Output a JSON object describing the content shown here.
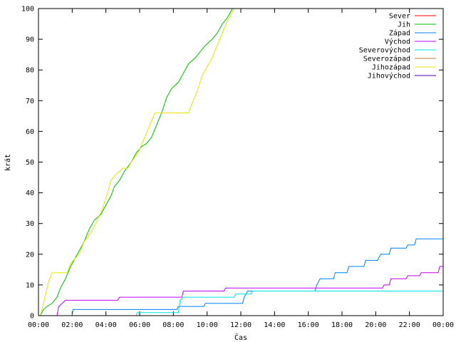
{
  "chart_data": {
    "type": "line",
    "xlabel": "Čas",
    "ylabel": "krát",
    "xlim": [
      0,
      24
    ],
    "ylim": [
      0,
      100
    ],
    "x_ticks": [
      {
        "v": 0,
        "label": "00:00"
      },
      {
        "v": 2,
        "label": "02:00"
      },
      {
        "v": 4,
        "label": "04:00"
      },
      {
        "v": 6,
        "label": "06:00"
      },
      {
        "v": 8,
        "label": "08:00"
      },
      {
        "v": 10,
        "label": "10:00"
      },
      {
        "v": 12,
        "label": "12:00"
      },
      {
        "v": 14,
        "label": "14:00"
      },
      {
        "v": 16,
        "label": "16:00"
      },
      {
        "v": 18,
        "label": "18:00"
      },
      {
        "v": 20,
        "label": "20:00"
      },
      {
        "v": 22,
        "label": "22:00"
      },
      {
        "v": 24,
        "label": "00:00"
      }
    ],
    "y_ticks": [
      {
        "v": 0,
        "label": "0"
      },
      {
        "v": 10,
        "label": "10"
      },
      {
        "v": 20,
        "label": "20"
      },
      {
        "v": 30,
        "label": "30"
      },
      {
        "v": 40,
        "label": "40"
      },
      {
        "v": 50,
        "label": "50"
      },
      {
        "v": 60,
        "label": "60"
      },
      {
        "v": 70,
        "label": "70"
      },
      {
        "v": 80,
        "label": "80"
      },
      {
        "v": 90,
        "label": "90"
      },
      {
        "v": 100,
        "label": "100"
      }
    ],
    "legend_position": "top-right",
    "series": [
      {
        "name": "Sever",
        "color": "#ff0000",
        "points": []
      },
      {
        "name": "Jih",
        "color": "#00c000",
        "points": [
          [
            0.1,
            0
          ],
          [
            0.3,
            2
          ],
          [
            0.5,
            3
          ],
          [
            0.8,
            4
          ],
          [
            1.1,
            6
          ],
          [
            1.3,
            9
          ],
          [
            1.6,
            12
          ],
          [
            1.9,
            16
          ],
          [
            2.2,
            19
          ],
          [
            2.7,
            24
          ],
          [
            3.0,
            28
          ],
          [
            3.3,
            31
          ],
          [
            3.7,
            33
          ],
          [
            4.0,
            36
          ],
          [
            4.3,
            39
          ],
          [
            4.5,
            42
          ],
          [
            4.8,
            44
          ],
          [
            5.1,
            47
          ],
          [
            5.5,
            50
          ],
          [
            5.8,
            53
          ],
          [
            6.1,
            55
          ],
          [
            6.4,
            56
          ],
          [
            6.7,
            58
          ],
          [
            7.0,
            62
          ],
          [
            7.3,
            66
          ],
          [
            7.6,
            71
          ],
          [
            7.9,
            74
          ],
          [
            8.3,
            76
          ],
          [
            8.6,
            79
          ],
          [
            8.9,
            82
          ],
          [
            9.3,
            84
          ],
          [
            9.6,
            86
          ],
          [
            9.9,
            88
          ],
          [
            10.3,
            90
          ],
          [
            10.6,
            92
          ],
          [
            10.9,
            95
          ],
          [
            11.2,
            97
          ],
          [
            11.5,
            100
          ]
        ]
      },
      {
        "name": "Západ",
        "color": "#0080ff",
        "points": [
          [
            2.0,
            0
          ],
          [
            2.05,
            2
          ],
          [
            8.2,
            2
          ],
          [
            8.3,
            3
          ],
          [
            9.8,
            3
          ],
          [
            9.9,
            4
          ],
          [
            12.1,
            4
          ],
          [
            12.2,
            6
          ],
          [
            12.3,
            7
          ],
          [
            12.4,
            8
          ],
          [
            16.4,
            8
          ],
          [
            16.5,
            10
          ],
          [
            16.7,
            12
          ],
          [
            17.5,
            12
          ],
          [
            17.6,
            14
          ],
          [
            18.3,
            14
          ],
          [
            18.4,
            16
          ],
          [
            19.3,
            16
          ],
          [
            19.4,
            18
          ],
          [
            20.1,
            18
          ],
          [
            20.3,
            20
          ],
          [
            20.8,
            20
          ],
          [
            20.9,
            22
          ],
          [
            21.8,
            22
          ],
          [
            21.9,
            23
          ],
          [
            22.3,
            23
          ],
          [
            22.4,
            25
          ],
          [
            24.0,
            25
          ]
        ]
      },
      {
        "name": "Východ",
        "color": "#c000ff",
        "points": [
          [
            1.1,
            0
          ],
          [
            1.2,
            3
          ],
          [
            1.6,
            5
          ],
          [
            4.7,
            5
          ],
          [
            4.8,
            6
          ],
          [
            8.5,
            6
          ],
          [
            8.6,
            8
          ],
          [
            11.0,
            8
          ],
          [
            11.1,
            9
          ],
          [
            20.4,
            9
          ],
          [
            20.5,
            10
          ],
          [
            20.8,
            10
          ],
          [
            20.9,
            12
          ],
          [
            21.8,
            12
          ],
          [
            21.9,
            13
          ],
          [
            22.6,
            13
          ],
          [
            22.7,
            14
          ],
          [
            23.7,
            14
          ],
          [
            23.8,
            16
          ],
          [
            24.0,
            16
          ]
        ]
      },
      {
        "name": "Severovýchod",
        "color": "#00e0e0",
        "points": [
          [
            5.8,
            0
          ],
          [
            5.85,
            1
          ],
          [
            8.3,
            1
          ],
          [
            8.4,
            5
          ],
          [
            8.6,
            6
          ],
          [
            11.6,
            6
          ],
          [
            11.7,
            7
          ],
          [
            12.6,
            7
          ],
          [
            12.7,
            8
          ],
          [
            24.0,
            8
          ]
        ]
      },
      {
        "name": "Severozápad",
        "color": "#c08040",
        "points": []
      },
      {
        "name": "Jihozápad",
        "color": "#e8e800",
        "points": [
          [
            0.1,
            0
          ],
          [
            0.3,
            4
          ],
          [
            0.6,
            11
          ],
          [
            0.8,
            14
          ],
          [
            1.7,
            14
          ],
          [
            1.9,
            17
          ],
          [
            2.4,
            20
          ],
          [
            2.7,
            24
          ],
          [
            3.1,
            27
          ],
          [
            3.4,
            30
          ],
          [
            3.8,
            35
          ],
          [
            4.1,
            40
          ],
          [
            4.3,
            44
          ],
          [
            4.6,
            46
          ],
          [
            5.0,
            48
          ],
          [
            5.3,
            48
          ],
          [
            5.5,
            50
          ],
          [
            5.9,
            53
          ],
          [
            6.3,
            58
          ],
          [
            6.6,
            62
          ],
          [
            6.9,
            66
          ],
          [
            7.3,
            66
          ],
          [
            8.9,
            66
          ],
          [
            9.1,
            69
          ],
          [
            9.4,
            73
          ],
          [
            9.7,
            78
          ],
          [
            10.0,
            81
          ],
          [
            10.3,
            84
          ],
          [
            10.6,
            88
          ],
          [
            10.9,
            92
          ],
          [
            11.2,
            96
          ],
          [
            11.4,
            98
          ],
          [
            11.6,
            100
          ]
        ]
      },
      {
        "name": "Jihovýchod",
        "color": "#4000a0",
        "points": []
      }
    ]
  }
}
